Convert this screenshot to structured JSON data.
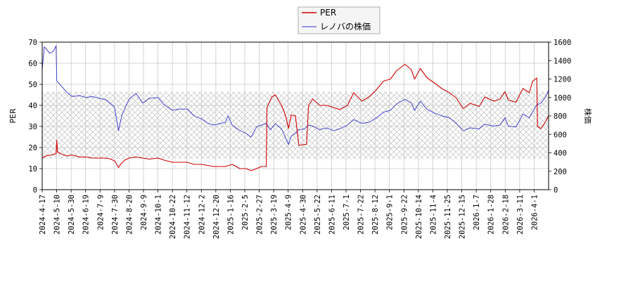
{
  "chart_data": {
    "type": "line",
    "title": "",
    "legend": {
      "placement": "top-center",
      "entries": [
        {
          "name": "PER",
          "color": "#cc0000"
        },
        {
          "name": "レノバの株価",
          "color": "#3333cc"
        }
      ]
    },
    "y_left": {
      "label": "PER",
      "ylim": [
        0,
        70
      ],
      "ticks": [
        "0",
        "10",
        "20",
        "30",
        "40",
        "50",
        "60",
        "70"
      ]
    },
    "y_right": {
      "label": "株価",
      "ylim": [
        0,
        1600
      ],
      "ticks": [
        "0",
        "200",
        "400",
        "600",
        "800",
        "1000",
        "1200",
        "1400",
        "1600"
      ]
    },
    "x": {
      "start": "2024-04-17",
      "end": "2026-04-17",
      "tick_labels": [
        "2024-4-17",
        "2024-5-10",
        "2024-5-30",
        "2024-6-19",
        "2024-7-9",
        "2024-7-30",
        "2024-8-20",
        "2024-9-9",
        "2024-10-1",
        "2024-10-22",
        "2024-11-12",
        "2024-12-2",
        "2024-12-20",
        "2025-1-16",
        "2025-2-5",
        "2025-2-27",
        "2025-3-19",
        "2025-4-9",
        "2025-4-30",
        "2025-5-22",
        "2025-6-11",
        "2025-7-1",
        "2025-7-22",
        "2025-8-12",
        "2025-9-1",
        "2025-9-22",
        "2025-10-14",
        "2025-11-4",
        "2025-11-25",
        "2025-12-15",
        "2026-1-7",
        "2026-1-28",
        "2026-2-18",
        "2026-3-11",
        "2026-4-1"
      ]
    },
    "grid": true,
    "hatched_band": {
      "axis": "y_left",
      "range": [
        14.5,
        46.5
      ]
    },
    "series": [
      {
        "name": "PER",
        "axis": "y_left",
        "color": "#cc0000",
        "points": [
          [
            "2024-04-17",
            15.0
          ],
          [
            "2024-04-22",
            16.0
          ],
          [
            "2024-04-30",
            16.5
          ],
          [
            "2024-05-07",
            17.0
          ],
          [
            "2024-05-08",
            23.5
          ],
          [
            "2024-05-09",
            18.0
          ],
          [
            "2024-05-14",
            17.0
          ],
          [
            "2024-05-22",
            16.0
          ],
          [
            "2024-05-30",
            16.5
          ],
          [
            "2024-06-10",
            15.5
          ],
          [
            "2024-06-19",
            15.5
          ],
          [
            "2024-06-28",
            15.0
          ],
          [
            "2024-07-09",
            15.0
          ],
          [
            "2024-07-18",
            15.0
          ],
          [
            "2024-07-25",
            14.5
          ],
          [
            "2024-07-31",
            13.5
          ],
          [
            "2024-08-05",
            10.5
          ],
          [
            "2024-08-09",
            12.5
          ],
          [
            "2024-08-14",
            14.0
          ],
          [
            "2024-08-20",
            15.0
          ],
          [
            "2024-08-30",
            15.5
          ],
          [
            "2024-09-09",
            15.0
          ],
          [
            "2024-09-18",
            14.5
          ],
          [
            "2024-10-01",
            15.0
          ],
          [
            "2024-10-10",
            14.0
          ],
          [
            "2024-10-22",
            13.0
          ],
          [
            "2024-11-01",
            13.0
          ],
          [
            "2024-11-12",
            13.0
          ],
          [
            "2024-11-22",
            12.0
          ],
          [
            "2024-12-02",
            12.0
          ],
          [
            "2024-12-12",
            11.5
          ],
          [
            "2024-12-20",
            11.0
          ],
          [
            "2025-01-06",
            11.0
          ],
          [
            "2025-01-16",
            12.0
          ],
          [
            "2025-01-27",
            10.0
          ],
          [
            "2025-02-05",
            10.0
          ],
          [
            "2025-02-12",
            9.0
          ],
          [
            "2025-02-20",
            10.0
          ],
          [
            "2025-02-27",
            11.0
          ],
          [
            "2025-03-06",
            11.0
          ],
          [
            "2025-03-07",
            39.0
          ],
          [
            "2025-03-14",
            44.0
          ],
          [
            "2025-03-19",
            45.0
          ],
          [
            "2025-03-28",
            40.0
          ],
          [
            "2025-04-03",
            35.0
          ],
          [
            "2025-04-07",
            29.0
          ],
          [
            "2025-04-11",
            35.5
          ],
          [
            "2025-04-17",
            35.0
          ],
          [
            "2025-04-22",
            21.0
          ],
          [
            "2025-04-30",
            21.5
          ],
          [
            "2025-05-03",
            21.5
          ],
          [
            "2025-05-06",
            40.0
          ],
          [
            "2025-05-12",
            43.0
          ],
          [
            "2025-05-22",
            40.0
          ],
          [
            "2025-06-01",
            40.0
          ],
          [
            "2025-06-11",
            39.0
          ],
          [
            "2025-06-20",
            38.0
          ],
          [
            "2025-07-01",
            40.0
          ],
          [
            "2025-07-10",
            46.0
          ],
          [
            "2025-07-22",
            42.0
          ],
          [
            "2025-08-01",
            44.0
          ],
          [
            "2025-08-12",
            47.5
          ],
          [
            "2025-08-22",
            51.5
          ],
          [
            "2025-09-01",
            52.5
          ],
          [
            "2025-09-10",
            56.5
          ],
          [
            "2025-09-22",
            59.5
          ],
          [
            "2025-10-01",
            57.0
          ],
          [
            "2025-10-06",
            52.5
          ],
          [
            "2025-10-14",
            57.5
          ],
          [
            "2025-10-24",
            53.0
          ],
          [
            "2025-11-04",
            50.5
          ],
          [
            "2025-11-14",
            48.0
          ],
          [
            "2025-11-25",
            46.0
          ],
          [
            "2025-12-05",
            43.5
          ],
          [
            "2025-12-15",
            38.5
          ],
          [
            "2025-12-25",
            41.0
          ],
          [
            "2026-01-07",
            39.5
          ],
          [
            "2026-01-15",
            44.0
          ],
          [
            "2026-01-28",
            42.0
          ],
          [
            "2026-02-06",
            43.0
          ],
          [
            "2026-02-13",
            46.5
          ],
          [
            "2026-02-18",
            42.5
          ],
          [
            "2026-03-01",
            41.5
          ],
          [
            "2026-03-11",
            48.0
          ],
          [
            "2026-03-20",
            46.0
          ],
          [
            "2026-03-25",
            51.5
          ],
          [
            "2026-03-31",
            53.0
          ],
          [
            "2026-04-01",
            30.0
          ],
          [
            "2026-04-06",
            29.0
          ],
          [
            "2026-04-12",
            32.0
          ],
          [
            "2026-04-17",
            35.0
          ]
        ]
      },
      {
        "name": "レノバの株価",
        "axis": "y_right",
        "color": "#3333cc",
        "points": [
          [
            "2024-04-17",
            1300
          ],
          [
            "2024-04-20",
            1550
          ],
          [
            "2024-04-28",
            1480
          ],
          [
            "2024-05-03",
            1500
          ],
          [
            "2024-05-07",
            1560
          ],
          [
            "2024-05-08",
            1180
          ],
          [
            "2024-05-14",
            1130
          ],
          [
            "2024-05-22",
            1060
          ],
          [
            "2024-05-30",
            1010
          ],
          [
            "2024-06-10",
            1020
          ],
          [
            "2024-06-19",
            1000
          ],
          [
            "2024-06-28",
            1010
          ],
          [
            "2024-07-09",
            990
          ],
          [
            "2024-07-18",
            975
          ],
          [
            "2024-07-30",
            900
          ],
          [
            "2024-08-05",
            640
          ],
          [
            "2024-08-10",
            810
          ],
          [
            "2024-08-20",
            980
          ],
          [
            "2024-08-30",
            1045
          ],
          [
            "2024-09-09",
            940
          ],
          [
            "2024-09-18",
            990
          ],
          [
            "2024-10-01",
            1000
          ],
          [
            "2024-10-10",
            920
          ],
          [
            "2024-10-22",
            860
          ],
          [
            "2024-11-01",
            875
          ],
          [
            "2024-11-12",
            875
          ],
          [
            "2024-11-22",
            800
          ],
          [
            "2024-12-02",
            770
          ],
          [
            "2024-12-12",
            720
          ],
          [
            "2024-12-20",
            700
          ],
          [
            "2025-01-06",
            730
          ],
          [
            "2025-01-10",
            800
          ],
          [
            "2025-01-16",
            700
          ],
          [
            "2025-01-27",
            640
          ],
          [
            "2025-02-05",
            610
          ],
          [
            "2025-02-12",
            570
          ],
          [
            "2025-02-20",
            680
          ],
          [
            "2025-02-27",
            700
          ],
          [
            "2025-03-06",
            720
          ],
          [
            "2025-03-12",
            650
          ],
          [
            "2025-03-19",
            715
          ],
          [
            "2025-03-28",
            660
          ],
          [
            "2025-04-03",
            560
          ],
          [
            "2025-04-07",
            490
          ],
          [
            "2025-04-11",
            580
          ],
          [
            "2025-04-17",
            610
          ],
          [
            "2025-04-22",
            650
          ],
          [
            "2025-04-30",
            660
          ],
          [
            "2025-05-06",
            700
          ],
          [
            "2025-05-12",
            690
          ],
          [
            "2025-05-22",
            650
          ],
          [
            "2025-06-01",
            670
          ],
          [
            "2025-06-11",
            640
          ],
          [
            "2025-06-20",
            660
          ],
          [
            "2025-07-01",
            700
          ],
          [
            "2025-07-10",
            760
          ],
          [
            "2025-07-22",
            720
          ],
          [
            "2025-08-01",
            730
          ],
          [
            "2025-08-12",
            780
          ],
          [
            "2025-08-22",
            840
          ],
          [
            "2025-09-01",
            860
          ],
          [
            "2025-09-10",
            930
          ],
          [
            "2025-09-22",
            980
          ],
          [
            "2025-10-01",
            940
          ],
          [
            "2025-10-06",
            860
          ],
          [
            "2025-10-14",
            960
          ],
          [
            "2025-10-24",
            870
          ],
          [
            "2025-11-04",
            830
          ],
          [
            "2025-11-14",
            800
          ],
          [
            "2025-11-25",
            780
          ],
          [
            "2025-12-05",
            720
          ],
          [
            "2025-12-15",
            640
          ],
          [
            "2025-12-25",
            670
          ],
          [
            "2026-01-07",
            660
          ],
          [
            "2026-01-15",
            710
          ],
          [
            "2026-01-28",
            690
          ],
          [
            "2026-02-06",
            700
          ],
          [
            "2026-02-13",
            780
          ],
          [
            "2026-02-18",
            690
          ],
          [
            "2026-03-01",
            680
          ],
          [
            "2026-03-11",
            820
          ],
          [
            "2026-03-20",
            780
          ],
          [
            "2026-03-31",
            920
          ],
          [
            "2026-04-06",
            940
          ],
          [
            "2026-04-12",
            1000
          ],
          [
            "2026-04-17",
            1080
          ]
        ]
      }
    ]
  }
}
